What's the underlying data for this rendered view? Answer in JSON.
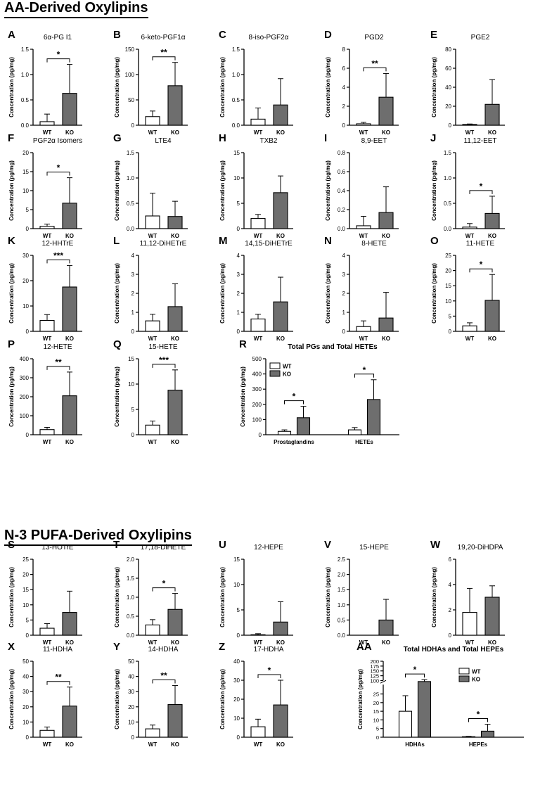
{
  "sections": [
    {
      "title": "AA-Derived Oxylipins"
    },
    {
      "title": "N-3 PUFA-Derived Oxylipins"
    }
  ],
  "colors": {
    "wt": "#ffffff",
    "ko": "#6e6e6e",
    "axis": "#000000"
  },
  "ylabel": "Concentration (pg/mg)",
  "chart_data": [
    {
      "type": "bar",
      "panel": "A",
      "title": "6α-PG I1",
      "categories": [
        "WT",
        "KO"
      ],
      "values": [
        0.07,
        0.63
      ],
      "errors": [
        0.15,
        0.57
      ],
      "ylim": [
        0,
        1.5
      ],
      "yticks": [
        "0.0",
        "0.5",
        "1.0",
        "1.5"
      ],
      "sig": "*"
    },
    {
      "type": "bar",
      "panel": "B",
      "title": "6-keto-PGF1α",
      "categories": [
        "WT",
        "KO"
      ],
      "values": [
        17,
        78
      ],
      "errors": [
        11,
        46
      ],
      "ylim": [
        0,
        150
      ],
      "yticks": [
        "0",
        "50",
        "100",
        "150"
      ],
      "sig": "**"
    },
    {
      "type": "bar",
      "panel": "C",
      "title": "8-iso-PGF2α",
      "categories": [
        "WT",
        "KO"
      ],
      "values": [
        0.12,
        0.4
      ],
      "errors": [
        0.22,
        0.52
      ],
      "ylim": [
        0,
        1.5
      ],
      "yticks": [
        "0.0",
        "0.5",
        "1.0",
        "1.5"
      ],
      "sig": ""
    },
    {
      "type": "bar",
      "panel": "D",
      "title": "PGD2",
      "categories": [
        "WT",
        "KO"
      ],
      "values": [
        0.15,
        2.95
      ],
      "errors": [
        0.15,
        2.5
      ],
      "ylim": [
        0,
        8
      ],
      "yticks": [
        "0",
        "2",
        "4",
        "6",
        "8"
      ],
      "sig": "**"
    },
    {
      "type": "bar",
      "panel": "E",
      "title": "PGE2",
      "categories": [
        "WT",
        "KO"
      ],
      "values": [
        0.8,
        22
      ],
      "errors": [
        0.5,
        26
      ],
      "ylim": [
        0,
        80
      ],
      "yticks": [
        "0",
        "20",
        "40",
        "60",
        "80"
      ],
      "sig": ""
    },
    {
      "type": "bar",
      "panel": "F",
      "title": "PGF2α Isomers",
      "categories": [
        "WT",
        "KO"
      ],
      "values": [
        0.6,
        6.7
      ],
      "errors": [
        0.6,
        6.7
      ],
      "ylim": [
        0,
        20
      ],
      "yticks": [
        "0",
        "5",
        "10",
        "15",
        "20"
      ],
      "sig": "*"
    },
    {
      "type": "bar",
      "panel": "G",
      "title": "LTE4",
      "categories": [
        "WT",
        "KO"
      ],
      "values": [
        0.25,
        0.24
      ],
      "errors": [
        0.45,
        0.3
      ],
      "ylim": [
        0,
        1.5
      ],
      "yticks": [
        "0.0",
        "0.5",
        "1.0",
        "1.5"
      ],
      "sig": ""
    },
    {
      "type": "bar",
      "panel": "H",
      "title": "TXB2",
      "categories": [
        "WT",
        "KO"
      ],
      "values": [
        2,
        7.1
      ],
      "errors": [
        0.8,
        3.3
      ],
      "ylim": [
        0,
        15
      ],
      "yticks": [
        "0",
        "5",
        "10",
        "15"
      ],
      "sig": ""
    },
    {
      "type": "bar",
      "panel": "I",
      "title": "8,9-EET",
      "categories": [
        "WT",
        "KO"
      ],
      "values": [
        0.03,
        0.17
      ],
      "errors": [
        0.1,
        0.27
      ],
      "ylim": [
        0,
        0.8
      ],
      "yticks": [
        "0.0",
        "0.2",
        "0.4",
        "0.6",
        "0.8"
      ],
      "sig": ""
    },
    {
      "type": "bar",
      "panel": "J",
      "title": "11,12-EET",
      "categories": [
        "WT",
        "KO"
      ],
      "values": [
        0.03,
        0.3
      ],
      "errors": [
        0.07,
        0.34
      ],
      "ylim": [
        0,
        1.5
      ],
      "yticks": [
        "0.0",
        "0.5",
        "1.0",
        "1.5"
      ],
      "sig": "*"
    },
    {
      "type": "bar",
      "panel": "K",
      "title": "12-HHTrE",
      "categories": [
        "WT",
        "KO"
      ],
      "values": [
        4.3,
        17.5
      ],
      "errors": [
        2.3,
        8.5
      ],
      "ylim": [
        0,
        30
      ],
      "yticks": [
        "0",
        "10",
        "20",
        "30"
      ],
      "sig": "***"
    },
    {
      "type": "bar",
      "panel": "L",
      "title": "11,12-DiHETrE",
      "categories": [
        "WT",
        "KO"
      ],
      "values": [
        0.55,
        1.3
      ],
      "errors": [
        0.35,
        1.2
      ],
      "ylim": [
        0,
        4
      ],
      "yticks": [
        "0",
        "1",
        "2",
        "3",
        "4"
      ],
      "sig": ""
    },
    {
      "type": "bar",
      "panel": "M",
      "title": "14,15-DiHETrE",
      "categories": [
        "WT",
        "KO"
      ],
      "values": [
        0.65,
        1.55
      ],
      "errors": [
        0.25,
        1.3
      ],
      "ylim": [
        0,
        4
      ],
      "yticks": [
        "0",
        "1",
        "2",
        "3",
        "4"
      ],
      "sig": ""
    },
    {
      "type": "bar",
      "panel": "N",
      "title": "8-HETE",
      "categories": [
        "WT",
        "KO"
      ],
      "values": [
        0.25,
        0.7
      ],
      "errors": [
        0.3,
        1.35
      ],
      "ylim": [
        0,
        4
      ],
      "yticks": [
        "0",
        "1",
        "2",
        "3",
        "4"
      ],
      "sig": ""
    },
    {
      "type": "bar",
      "panel": "O",
      "title": "11-HETE",
      "categories": [
        "WT",
        "KO"
      ],
      "values": [
        1.8,
        10.2
      ],
      "errors": [
        1,
        8.5
      ],
      "ylim": [
        0,
        25
      ],
      "yticks": [
        "0",
        "5",
        "10",
        "15",
        "20",
        "25"
      ],
      "sig": "*"
    },
    {
      "type": "bar",
      "panel": "P",
      "title": "12-HETE",
      "categories": [
        "WT",
        "KO"
      ],
      "values": [
        27,
        205
      ],
      "errors": [
        12,
        125
      ],
      "ylim": [
        0,
        400
      ],
      "yticks": [
        "0",
        "100",
        "200",
        "300",
        "400"
      ],
      "sig": "**"
    },
    {
      "type": "bar",
      "panel": "Q",
      "title": "15-HETE",
      "categories": [
        "WT",
        "KO"
      ],
      "values": [
        1.9,
        8.8
      ],
      "errors": [
        0.8,
        4
      ],
      "ylim": [
        0,
        15
      ],
      "yticks": [
        "0",
        "5",
        "10",
        "15"
      ],
      "sig": "***"
    },
    {
      "type": "grouped-bar",
      "panel": "R",
      "title": "Total PGs and Total HETEs",
      "categories": [
        "Prostaglandins",
        "HETEs"
      ],
      "series": [
        {
          "name": "WT",
          "values": [
            22,
            32
          ],
          "errors": [
            10,
            15
          ]
        },
        {
          "name": "KO",
          "values": [
            112,
            232
          ],
          "errors": [
            75,
            130
          ]
        }
      ],
      "ylim": [
        0,
        500
      ],
      "yticks": [
        "0",
        "100",
        "200",
        "300",
        "400",
        "500"
      ],
      "sig": [
        "*",
        "*"
      ],
      "legend": "top-left"
    },
    {
      "type": "bar",
      "panel": "S",
      "title": "13-HOTrE",
      "categories": [
        "WT",
        "KO"
      ],
      "values": [
        2.3,
        7.5
      ],
      "errors": [
        1.5,
        7
      ],
      "ylim": [
        0,
        25
      ],
      "yticks": [
        "0",
        "5",
        "10",
        "15",
        "20",
        "25"
      ],
      "sig": ""
    },
    {
      "type": "bar",
      "panel": "T",
      "title": "17,18-DiHETE",
      "categories": [
        "WT",
        "KO"
      ],
      "values": [
        0.27,
        0.68
      ],
      "errors": [
        0.14,
        0.42
      ],
      "ylim": [
        0,
        2
      ],
      "yticks": [
        "0.0",
        "0.5",
        "1.0",
        "1.5",
        "2.0"
      ],
      "sig": "*"
    },
    {
      "type": "bar",
      "panel": "U",
      "title": "12-HEPE",
      "categories": [
        "WT",
        "KO"
      ],
      "values": [
        0.1,
        2.6
      ],
      "errors": [
        0.2,
        4
      ],
      "ylim": [
        0,
        15
      ],
      "yticks": [
        "0",
        "5",
        "10",
        "15"
      ],
      "sig": ""
    },
    {
      "type": "bar",
      "panel": "V",
      "title": "15-HEPE",
      "categories": [
        "WT",
        "KO"
      ],
      "values": [
        0,
        0.5
      ],
      "errors": [
        0,
        0.68
      ],
      "ylim": [
        0,
        2.5
      ],
      "yticks": [
        "0.0",
        "0.5",
        "1.0",
        "1.5",
        "2.0",
        "2.5"
      ],
      "sig": ""
    },
    {
      "type": "bar",
      "panel": "W",
      "title": "19,20-DiHDPA",
      "categories": [
        "WT",
        "KO"
      ],
      "values": [
        1.8,
        3
      ],
      "errors": [
        1.9,
        0.9
      ],
      "ylim": [
        0,
        6
      ],
      "yticks": [
        "0",
        "2",
        "4",
        "6"
      ],
      "sig": ""
    },
    {
      "type": "bar",
      "panel": "X",
      "title": "11-HDHA",
      "categories": [
        "WT",
        "KO"
      ],
      "values": [
        4.5,
        20.5
      ],
      "errors": [
        2.2,
        12.5
      ],
      "ylim": [
        0,
        50
      ],
      "yticks": [
        "0",
        "10",
        "20",
        "30",
        "40",
        "50"
      ],
      "sig": "**"
    },
    {
      "type": "bar",
      "panel": "Y",
      "title": "14-HDHA",
      "categories": [
        "WT",
        "KO"
      ],
      "values": [
        5.5,
        21.5
      ],
      "errors": [
        2.5,
        12.5
      ],
      "ylim": [
        0,
        50
      ],
      "yticks": [
        "0",
        "10",
        "20",
        "30",
        "40",
        "50"
      ],
      "sig": "**"
    },
    {
      "type": "bar",
      "panel": "Z",
      "title": "17-HDHA",
      "categories": [
        "WT",
        "KO"
      ],
      "values": [
        5.5,
        17
      ],
      "errors": [
        4,
        13
      ],
      "ylim": [
        0,
        40
      ],
      "yticks": [
        "0",
        "10",
        "20",
        "30",
        "40"
      ],
      "sig": "*"
    },
    {
      "type": "grouped-bar",
      "panel": "AA",
      "title": "Total HDHAs and Total HEPEs",
      "categories": [
        "HDHAs",
        "HEPEs"
      ],
      "series": [
        {
          "name": "WT",
          "values": [
            15,
            0.3
          ],
          "errors": [
            9,
            0.2
          ]
        },
        {
          "name": "KO",
          "values": [
            95,
            3.5
          ],
          "errors": [
            10,
            4
          ]
        }
      ],
      "ylim": [
        0,
        200
      ],
      "broken_axis": {
        "lower": [
          0,
          30
        ],
        "upper": [
          90,
          200
        ]
      },
      "yticks": [
        "0",
        "5",
        "10",
        "15",
        "20",
        "25",
        "100",
        "125",
        "150",
        "175",
        "200"
      ],
      "sig": [
        "*",
        "*"
      ],
      "legend": "top-right"
    }
  ]
}
